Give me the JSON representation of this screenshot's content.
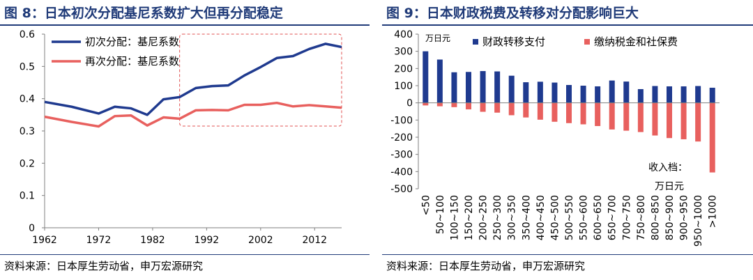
{
  "left": {
    "title": "图 8：日本初次分配基尼系数扩大但再分配稳定",
    "source": "资料来源：日本厚生劳动省，申万宏源研究"
  },
  "right": {
    "title": "图 9：日本财政税费及转移对分配影响巨大",
    "source": "资料来源：日本厚生劳动省，申万宏源研究"
  },
  "colors": {
    "navy": "#1f3a8f",
    "red": "#e8605e",
    "title": "#1f3a78",
    "box": "#e05050"
  },
  "chart_data": [
    {
      "type": "line",
      "title": "日本初次分配基尼系数扩大但再分配稳定",
      "x": [
        1962,
        1967,
        1972,
        1975,
        1978,
        1981,
        1984,
        1987,
        1990,
        1993,
        1996,
        1999,
        2002,
        2005,
        2008,
        2011,
        2014,
        2017
      ],
      "xticks": [
        1962,
        1972,
        1982,
        1992,
        2002,
        2012
      ],
      "xlim": [
        1962,
        2017
      ],
      "ylim": [
        0,
        0.6
      ],
      "yticks": [
        "0",
        "0.1",
        "0.2",
        "0.3",
        "0.4",
        "0.5",
        "0.6"
      ],
      "legend_position": "top-left",
      "highlight_box": {
        "x_from": 1987,
        "x_to": 2017,
        "y_from": 0.315,
        "y_to": 0.6,
        "style": "dashed"
      },
      "series": [
        {
          "name": "初次分配：基尼系数",
          "color": "#1f3a8f",
          "values": [
            0.39,
            0.375,
            0.354,
            0.375,
            0.37,
            0.35,
            0.398,
            0.405,
            0.433,
            0.439,
            0.441,
            0.472,
            0.498,
            0.526,
            0.532,
            0.554,
            0.57,
            0.56
          ]
        },
        {
          "name": "再次分配：基尼系数",
          "color": "#e8605e",
          "values": [
            0.344,
            0.328,
            0.314,
            0.346,
            0.348,
            0.317,
            0.342,
            0.338,
            0.364,
            0.365,
            0.364,
            0.381,
            0.381,
            0.387,
            0.376,
            0.38,
            0.376,
            0.372
          ]
        }
      ]
    },
    {
      "type": "bar",
      "title": "日本财政税费及转移对分配影响巨大",
      "unit_label": "万日元",
      "categories": [
        "<50",
        "50~100",
        "100~150",
        "150~200",
        "200~250",
        "250~300",
        "300~350",
        "350~400",
        "400~450",
        "450~500",
        "500~550",
        "550~600",
        "600~650",
        "650~700",
        "700~750",
        "750~800",
        "800~850",
        "850~900",
        "900~950",
        "950~1000",
        ">1000"
      ],
      "ylim": [
        -500,
        400
      ],
      "yticks": [
        "400",
        "300",
        "200",
        "100",
        "0",
        "-100",
        "-200",
        "-300",
        "-400",
        "-500"
      ],
      "legend_position": "top",
      "annotation": {
        "line1": "收入档：",
        "line2": "万日元"
      },
      "series": [
        {
          "name": "财政转移支付",
          "color": "#1f3a8f",
          "values": [
            300,
            252,
            178,
            180,
            185,
            183,
            158,
            120,
            123,
            118,
            104,
            100,
            96,
            130,
            124,
            80,
            98,
            96,
            96,
            98,
            88
          ]
        },
        {
          "name": "缴纳税金和社保费",
          "color": "#e8605e",
          "values": [
            -15,
            -20,
            -25,
            -38,
            -52,
            -57,
            -72,
            -85,
            -98,
            -110,
            -118,
            -125,
            -135,
            -155,
            -162,
            -170,
            -190,
            -205,
            -212,
            -225,
            -405
          ]
        }
      ]
    }
  ]
}
